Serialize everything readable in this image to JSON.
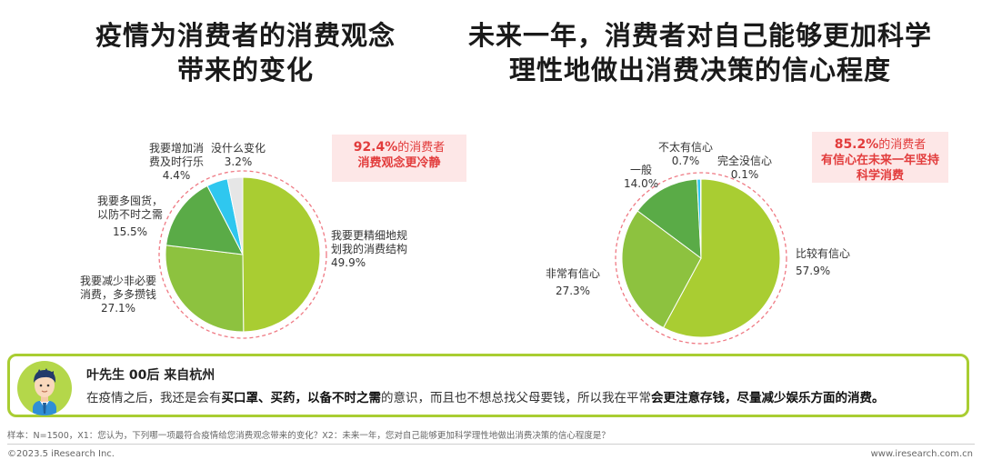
{
  "titles": {
    "left": [
      "疫情为消费者的消费观念",
      "带来的变化"
    ],
    "right": [
      "未来一年，消费者对自己能够更加科学",
      "理性地做出消费决策的信心程度"
    ]
  },
  "callouts": {
    "left": {
      "num": "92.4%",
      "rest": "的消费者",
      "line2": "消费观念更冷静"
    },
    "right": {
      "num": "85.2%",
      "rest": "的消费者",
      "line2": "有信心在未来一年坚持",
      "line3": "科学消费"
    }
  },
  "colors": {
    "light_green": "#a9cd32",
    "mid_green": "#8dc23f",
    "dark_green": "#5aab47",
    "cyan": "#2fc7ef",
    "gray": "#e6e6e6",
    "callout_red": "#e23c3c",
    "dashed_ring": "#ef7a84"
  },
  "chart_data": [
    {
      "type": "pie",
      "title": "疫情为消费者的消费观念带来的变化",
      "slices": [
        {
          "label": "我要更精细地规划我的消费结构",
          "value": 49.9,
          "color": "#a9cd32"
        },
        {
          "label": "我要减少非必要消费，多多攒钱",
          "value": 27.1,
          "color": "#8dc23f"
        },
        {
          "label": "我要多囤货，以防不时之需",
          "value": 15.5,
          "color": "#5aab47"
        },
        {
          "label": "我要增加消费及时行乐",
          "value": 4.4,
          "color": "#2fc7ef"
        },
        {
          "label": "没什么变化",
          "value": 3.2,
          "color": "#e6e6e6"
        }
      ]
    },
    {
      "type": "pie",
      "title": "未来一年，消费者对自己能够更加科学理性地做出消费决策的信心程度",
      "slices": [
        {
          "label": "比较有信心",
          "value": 57.9,
          "color": "#a9cd32"
        },
        {
          "label": "非常有信心",
          "value": 27.3,
          "color": "#8dc23f"
        },
        {
          "label": "一般",
          "value": 14.0,
          "color": "#5aab47"
        },
        {
          "label": "不太有信心",
          "value": 0.7,
          "color": "#2fc7ef"
        },
        {
          "label": "完全没信心",
          "value": 0.1,
          "color": "#e6e6e6"
        }
      ]
    }
  ],
  "labels": {
    "left": [
      {
        "lines": [
          "我要更精细地规",
          "划我的消费结构"
        ],
        "pct": "49.9%"
      },
      {
        "lines": [
          "我要减少非必要",
          "消费，多多攒钱"
        ],
        "pct": "27.1%"
      },
      {
        "lines": [
          "我要多囤货，",
          "以防不时之需"
        ],
        "pct": "15.5%"
      },
      {
        "lines": [
          "我要增加消",
          "费及时行乐"
        ],
        "pct": "4.4%"
      },
      {
        "lines": [
          "没什么变化"
        ],
        "pct": "3.2%"
      }
    ],
    "right": [
      {
        "lines": [
          "比较有信心"
        ],
        "pct": "57.9%"
      },
      {
        "lines": [
          "非常有信心"
        ],
        "pct": "27.3%"
      },
      {
        "lines": [
          "一般"
        ],
        "pct": "14.0%"
      },
      {
        "lines": [
          "不太有信心"
        ],
        "pct": "0.7%"
      },
      {
        "lines": [
          "完全没信心"
        ],
        "pct": "0.1%"
      }
    ]
  },
  "quote": {
    "name": "叶先生 00后 来自杭州",
    "t1": "在疫情之后，我还是会有",
    "b1": "买口罩、买药，以备不时之需",
    "t2": "的意识，而且也不想总找父母要钱，所以我在平常",
    "b2": "会更注意存钱，尽量减少娱乐方面的消费。"
  },
  "footnote": "样本：N=1500，X1：您认为，下列哪一项最符合疫情给您消费观念带来的变化？X2：未来一年，您对自己能够更加科学理性地做出消费决策的信心程度是？",
  "footer": {
    "left": "©2023.5 iResearch Inc.",
    "right": "www.iresearch.com.cn"
  }
}
